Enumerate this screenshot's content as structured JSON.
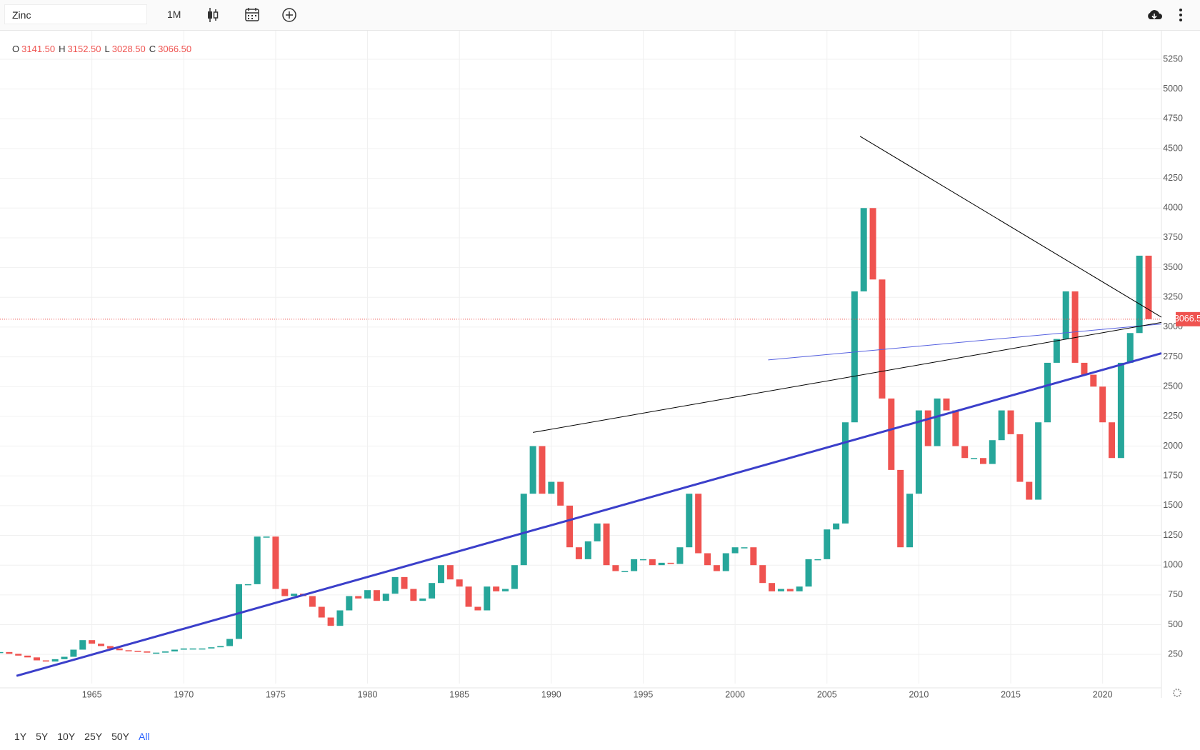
{
  "toolbar": {
    "symbol": "Zinc",
    "interval": "1M"
  },
  "legend": [
    {
      "key": "O",
      "value": "3141.50"
    },
    {
      "key": "H",
      "value": "3152.50"
    },
    {
      "key": "L",
      "value": "3028.50"
    },
    {
      "key": "C",
      "value": "3066.50"
    }
  ],
  "chart_data": {
    "type": "candlestick",
    "x": [
      1960,
      1960.5,
      1961,
      1961.5,
      1962,
      1962.5,
      1963,
      1963.5,
      1964,
      1964.5,
      1965,
      1965.5,
      1966,
      1966.5,
      1967,
      1967.5,
      1968,
      1968.5,
      1969,
      1969.5,
      1970,
      1970.5,
      1971,
      1971.5,
      1972,
      1972.5,
      1973,
      1973.5,
      1974,
      1974.5,
      1975,
      1975.5,
      1976,
      1976.5,
      1977,
      1977.5,
      1978,
      1978.5,
      1979,
      1979.5,
      1980,
      1980.5,
      1981,
      1981.5,
      1982,
      1982.5,
      1983,
      1983.5,
      1984,
      1984.5,
      1985,
      1985.5,
      1986,
      1986.5,
      1987,
      1987.5,
      1988,
      1988.5,
      1989,
      1989.5,
      1990,
      1990.5,
      1991,
      1991.5,
      1992,
      1992.5,
      1993,
      1993.5,
      1994,
      1994.5,
      1995,
      1995.5,
      1996,
      1996.5,
      1997,
      1997.5,
      1998,
      1998.5,
      1999,
      1999.5,
      2000,
      2000.5,
      2001,
      2001.5,
      2002,
      2002.5,
      2003,
      2003.5,
      2004,
      2004.5,
      2005,
      2005.5,
      2006,
      2006.5,
      2007,
      2007.5,
      2008,
      2008.5,
      2009,
      2009.5,
      2010,
      2010.5,
      2011,
      2011.5,
      2012,
      2012.5,
      2013,
      2013.5,
      2014,
      2014.5,
      2015,
      2015.5,
      2016,
      2016.5,
      2017,
      2017.5,
      2018,
      2018.5,
      2019,
      2019.5,
      2020,
      2020.5,
      2021,
      2021.5,
      2022,
      2022.5
    ],
    "values": [
      270,
      255,
      240,
      225,
      200,
      190,
      210,
      230,
      290,
      370,
      340,
      320,
      300,
      285,
      280,
      275,
      265,
      265,
      275,
      290,
      300,
      300,
      300,
      310,
      320,
      380,
      840,
      840,
      1240,
      1240,
      800,
      740,
      760,
      740,
      650,
      560,
      490,
      620,
      740,
      720,
      790,
      700,
      760,
      900,
      800,
      700,
      720,
      850,
      1000,
      880,
      820,
      650,
      620,
      820,
      780,
      800,
      1000,
      1600,
      2000,
      1600,
      1700,
      1500,
      1150,
      1050,
      1200,
      1350,
      1000,
      950,
      950,
      1050,
      1050,
      1000,
      1020,
      1010,
      1150,
      1600,
      1100,
      1000,
      950,
      1100,
      1150,
      1150,
      1000,
      850,
      780,
      800,
      780,
      820,
      1050,
      1050,
      1300,
      1350,
      2200,
      3300,
      4000,
      3400,
      2400,
      1800,
      1150,
      1600,
      2300,
      2000,
      2400,
      2300,
      2000,
      1900,
      1900,
      1850,
      2050,
      2300,
      2100,
      1700,
      1550,
      2200,
      2700,
      2900,
      3300,
      2700,
      2600,
      2500,
      2200,
      1900,
      2700,
      2950,
      3600,
      3066.5
    ],
    "up_color": "#26a69a",
    "down_color": "#ef5350",
    "xlim": [
      1960,
      2023.2
    ],
    "ylim": [
      5,
      5490
    ],
    "xticks": [
      1965,
      1970,
      1975,
      1980,
      1985,
      1990,
      1995,
      2000,
      2005,
      2010,
      2015,
      2020
    ],
    "yticks": [
      250,
      500,
      750,
      1000,
      1250,
      1500,
      1750,
      2000,
      2250,
      2500,
      2750,
      3000,
      3250,
      3500,
      3750,
      4000,
      4250,
      4500,
      4750,
      5000,
      5250
    ],
    "grid": true,
    "last_price": 3066.5,
    "trendlines": [
      {
        "color": "#3b3fca",
        "bold": true,
        "points": [
          [
            1960.9,
            70
          ],
          [
            2023.2,
            2780
          ]
        ]
      },
      {
        "color": "#5560e0",
        "bold": false,
        "points": [
          [
            2001.8,
            2724
          ],
          [
            2023.2,
            3026
          ]
        ]
      },
      {
        "color": "#000000",
        "bold": false,
        "points": [
          [
            1989.0,
            2115
          ],
          [
            2023.2,
            3039
          ]
        ]
      },
      {
        "color": "#000000",
        "bold": false,
        "points": [
          [
            2006.8,
            4603
          ],
          [
            2023.2,
            3083
          ]
        ]
      }
    ]
  },
  "range_buttons": [
    "1Y",
    "5Y",
    "10Y",
    "25Y",
    "50Y",
    "All"
  ],
  "active_range": 5
}
